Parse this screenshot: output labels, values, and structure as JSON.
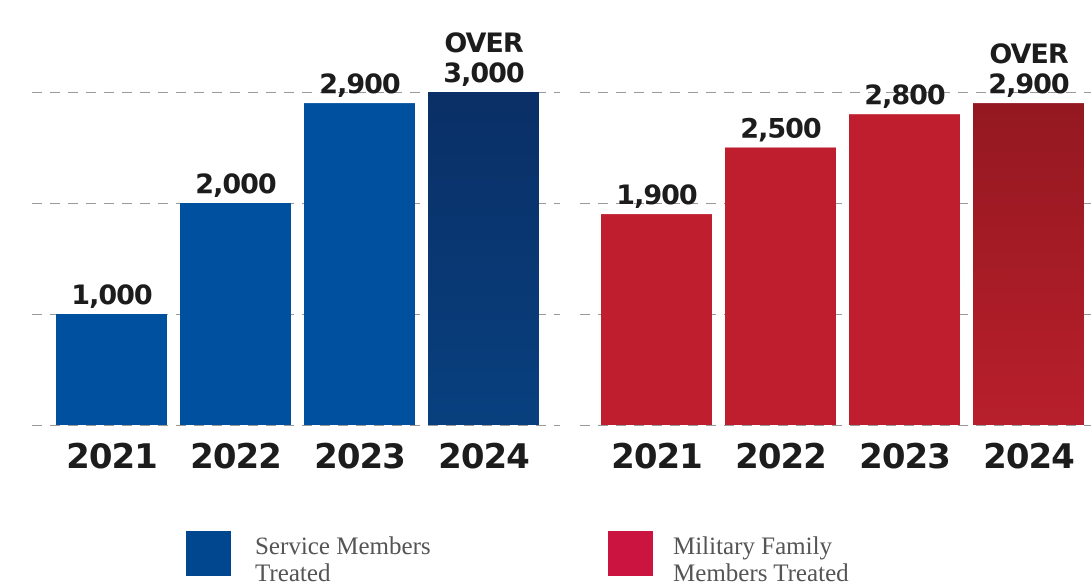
{
  "chart_data": [
    {
      "type": "bar",
      "categories": [
        "2021",
        "2022",
        "2023",
        "2024"
      ],
      "series": [
        {
          "name": "Service Members Treated",
          "values": [
            1000,
            2000,
            2900,
            3000
          ]
        }
      ],
      "data_labels": [
        [
          "1,000"
        ],
        [
          "2,000"
        ],
        [
          "2,900"
        ],
        [
          "OVER",
          "3,000"
        ]
      ],
      "ylim": [
        0,
        3000
      ],
      "gridlines": [
        1000,
        2000,
        3000
      ],
      "colors": [
        "#0050a0",
        "#0050a0",
        "#0050a0",
        "#062a5a"
      ],
      "highlight_gradient": [
        "#0a2f66",
        "#08407f"
      ]
    },
    {
      "type": "bar",
      "categories": [
        "2021",
        "2022",
        "2023",
        "2024"
      ],
      "series": [
        {
          "name": "Military Family Members Treated",
          "values": [
            1900,
            2500,
            2800,
            2900
          ]
        }
      ],
      "data_labels": [
        [
          "1,900"
        ],
        [
          "2,500"
        ],
        [
          "2,800"
        ],
        [
          "OVER",
          "2,900"
        ]
      ],
      "ylim": [
        0,
        3000
      ],
      "gridlines": [
        1000,
        2000,
        3000
      ],
      "colors": [
        "#be1e2d",
        "#be1e2d",
        "#be1e2d",
        "#9b1a22"
      ],
      "highlight_gradient": [
        "#941820",
        "#b81f2c"
      ]
    }
  ],
  "legend": [
    {
      "lines": [
        "Service Members",
        "Treated"
      ],
      "color": "#00478f"
    },
    {
      "lines": [
        "Military Family",
        "Members Treated"
      ],
      "color": "#cc1440"
    }
  ]
}
